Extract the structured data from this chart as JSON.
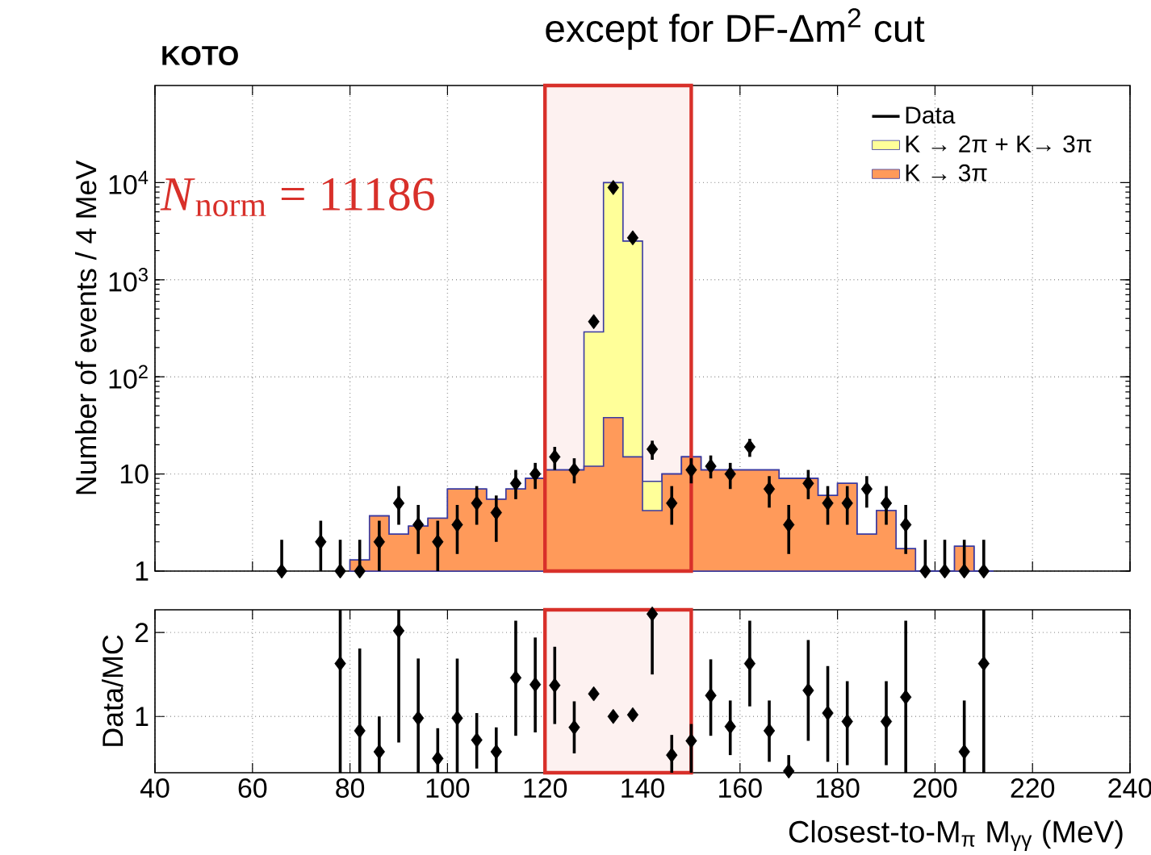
{
  "chart_data": [
    {
      "type": "histogram",
      "title": "except for DF-Δm$^{2}$ cut",
      "ylabel": "Number of events / 4 MeV",
      "annotations": [
        "*N*$_{norm}$ = 11186",
        "KOTO"
      ],
      "bins": [
        80,
        84,
        88,
        92,
        96,
        100,
        104,
        108,
        112,
        116,
        120,
        124,
        128,
        132,
        136,
        140,
        144,
        148,
        152,
        156,
        160,
        164,
        168,
        172,
        176,
        180,
        184,
        188,
        192,
        196,
        200,
        204,
        208,
        212
      ],
      "series": [
        {
          "name": "Data",
          "type": "scatter",
          "color": "#000000",
          "x": [
            66,
            74,
            78,
            82,
            86,
            90,
            94,
            98,
            102,
            106,
            110,
            114,
            118,
            122,
            126,
            130,
            134,
            138,
            142,
            146,
            150,
            154,
            158,
            162,
            166,
            170,
            174,
            178,
            182,
            186,
            190,
            194,
            198,
            202,
            206,
            210
          ],
          "values": [
            1,
            2,
            1,
            1,
            2,
            5,
            3,
            2,
            3,
            5,
            4,
            8,
            10,
            15,
            11,
            370,
            8900,
            2700,
            18,
            5,
            11,
            12,
            10,
            19,
            7,
            3,
            8,
            5,
            5,
            7,
            5,
            3,
            1,
            1,
            1,
            1
          ],
          "errors": [
            [
              1,
              2.1
            ],
            [
              1,
              3.3
            ],
            [
              1,
              2.1
            ],
            [
              1,
              2.1
            ],
            [
              1,
              3.3
            ],
            [
              3,
              7.5
            ],
            [
              1.5,
              4.8
            ],
            [
              1,
              3.3
            ],
            [
              1.5,
              4.8
            ],
            [
              3,
              7.5
            ],
            [
              2,
              6
            ],
            [
              5.5,
              11
            ],
            [
              7,
              13
            ],
            [
              11,
              19
            ],
            [
              8,
              14.5
            ],
            null,
            null,
            null,
            [
              14,
              22
            ],
            [
              3,
              7.5
            ],
            [
              8,
              14.5
            ],
            [
              9,
              15.5
            ],
            [
              7,
              13
            ],
            [
              15,
              23
            ],
            [
              4.5,
              9.5
            ],
            [
              1.5,
              4.8
            ],
            [
              5.5,
              11
            ],
            [
              3,
              7.5
            ],
            [
              3,
              7.5
            ],
            [
              4.5,
              9.5
            ],
            [
              3,
              7.5
            ],
            [
              1.5,
              4.8
            ],
            [
              1,
              2.1
            ],
            [
              1,
              2.1
            ],
            [
              1,
              2.1
            ],
            [
              1,
              2.1
            ]
          ]
        },
        {
          "name": "K → 2π + K→ 3π",
          "color": "#ffff99",
          "values": [
            1.3,
            3.7,
            2.4,
            2.9,
            3.5,
            7,
            7,
            5.5,
            7,
            9,
            11,
            11,
            290,
            10000,
            2500,
            8.4,
            10,
            15,
            11,
            11,
            11,
            11,
            9,
            9,
            6,
            8,
            2.4,
            4.2,
            1.7,
            null,
            null,
            1.8,
            null
          ]
        },
        {
          "name": "K → 3π",
          "color": "#ff9a5a",
          "values": [
            1.3,
            3.7,
            2.4,
            2.9,
            3.5,
            7,
            7,
            5.5,
            7,
            9,
            11,
            11,
            12,
            38,
            15,
            4.2,
            10,
            15,
            11,
            11,
            11,
            11,
            9,
            9,
            6,
            8,
            2.4,
            4.2,
            1.7,
            null,
            null,
            1.8,
            null
          ]
        }
      ],
      "xlim": [
        40,
        240
      ],
      "xticks": [
        40,
        60,
        80,
        100,
        120,
        140,
        160,
        180,
        200,
        220,
        240
      ],
      "ylim": [
        1,
        100000
      ],
      "yticks": [
        1,
        10,
        {
          "value": 100,
          "label": "10$^{2}$"
        },
        {
          "value": 1000,
          "label": "10$^{3}$"
        },
        {
          "value": 10000,
          "label": "10$^{4}$"
        }
      ],
      "log": "y",
      "grid": true,
      "legend": "top right",
      "marker": "diamond",
      "tick_labels": "y",
      "bands": [
        {
          "axis": "x",
          "from": 120,
          "to": 150,
          "color": "#fdf1f0"
        }
      ]
    },
    {
      "type": "scatter",
      "xlabel": "Closest-to-M$_{π}$ M$_{γγ}$ (MeV)",
      "ylabel": "Data/MC",
      "series": [
        {
          "color": "#000000",
          "x": [
            78,
            82,
            86,
            90,
            94,
            98,
            102,
            106,
            110,
            114,
            118,
            122,
            126,
            130,
            134,
            138,
            142,
            146,
            150,
            154,
            158,
            162,
            166,
            170,
            174,
            178,
            182,
            190,
            194,
            206,
            210
          ],
          "values": [
            1.63,
            0.83,
            0.58,
            2.02,
            0.98,
            0.5,
            0.98,
            0.72,
            0.58,
            1.46,
            1.38,
            1.37,
            0.87,
            1.27,
            1.0,
            1.02,
            2.22,
            0.54,
            0.71,
            1.25,
            0.88,
            1.63,
            0.83,
            0.35,
            1.31,
            1.04,
            0.94,
            0.94,
            1.23,
            0.58,
            1.63
          ],
          "errors": [
            [
              0.33,
              2.27
            ],
            [
              0.33,
              1.81
            ],
            [
              0.33,
              1.0
            ],
            [
              0.69,
              2.27
            ],
            [
              0.33,
              1.69
            ],
            [
              0.33,
              0.86
            ],
            [
              0.33,
              1.69
            ],
            [
              0.38,
              1.04
            ],
            [
              0.33,
              0.87
            ],
            [
              0.77,
              2.14
            ],
            [
              0.81,
              1.94
            ],
            [
              0.91,
              1.83
            ],
            [
              0.56,
              1.18
            ],
            null,
            null,
            null,
            [
              1.5,
              2.27
            ],
            [
              0.33,
              0.78
            ],
            [
              0.33,
              0.91
            ],
            [
              0.77,
              1.68
            ],
            [
              0.54,
              1.19
            ],
            [
              1.12,
              2.14
            ],
            [
              0.46,
              1.19
            ],
            [
              0.33,
              0.54
            ],
            [
              0.71,
              1.91
            ],
            [
              0.46,
              1.6
            ],
            [
              0.42,
              1.42
            ],
            [
              0.42,
              1.42
            ],
            [
              0.33,
              2.14
            ],
            [
              0.33,
              1.19
            ],
            [
              0.33,
              2.27
            ]
          ]
        }
      ],
      "xlim": [
        40,
        240
      ],
      "xticks": [
        40,
        60,
        80,
        100,
        120,
        140,
        160,
        180,
        200,
        220,
        240
      ],
      "ylim": [
        0.33,
        2.27
      ],
      "yticks": [
        1,
        2
      ],
      "grid": true,
      "marker": "diamond",
      "bands": [
        {
          "axis": "x",
          "from": 120,
          "to": 150,
          "color": "#fdf1f0"
        }
      ]
    }
  ]
}
